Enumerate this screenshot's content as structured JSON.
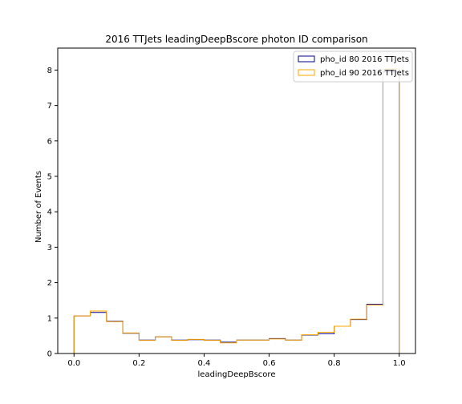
{
  "chart_data": {
    "type": "histogram",
    "title": "2016 TTJets leadingDeepBscore photon ID comparison",
    "xlabel": "leadingDeepBscore",
    "ylabel": "Number of Events",
    "xlim": [
      -0.05,
      1.05
    ],
    "ylim": [
      0,
      8.62
    ],
    "xticks": [
      "0.0",
      "0.2",
      "0.4",
      "0.6",
      "0.8",
      "1.0"
    ],
    "yticks": [
      "0",
      "1",
      "2",
      "3",
      "4",
      "5",
      "6",
      "7",
      "8"
    ],
    "bin_edges": [
      0.0,
      0.05,
      0.1,
      0.15,
      0.2,
      0.25,
      0.3,
      0.35,
      0.4,
      0.45,
      0.5,
      0.55,
      0.6,
      0.65,
      0.7,
      0.75,
      0.8,
      0.85,
      0.9,
      0.95,
      1.0
    ],
    "legend_position": "top-right",
    "grid": false,
    "series": [
      {
        "name": "pho_id 80 2016 TTJets",
        "color": "#00008b",
        "values": [
          1.06,
          1.16,
          0.91,
          0.57,
          0.38,
          0.47,
          0.38,
          0.39,
          0.38,
          0.32,
          0.38,
          0.38,
          0.42,
          0.38,
          0.52,
          0.56,
          0.77,
          0.96,
          1.39,
          7.95
        ]
      },
      {
        "name": "pho_id 90 2016 TTJets",
        "color": "#ffa500",
        "values": [
          1.06,
          1.2,
          0.9,
          0.58,
          0.37,
          0.47,
          0.37,
          0.4,
          0.37,
          0.3,
          0.38,
          0.38,
          0.41,
          0.38,
          0.53,
          0.6,
          0.77,
          0.97,
          1.37,
          8.03
        ]
      }
    ]
  }
}
